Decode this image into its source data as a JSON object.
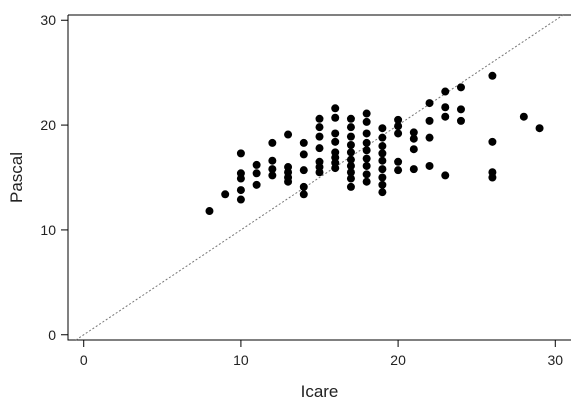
{
  "chart_data": {
    "type": "scatter",
    "xlabel": "Icare",
    "ylabel": "Pascal",
    "xlim": [
      -1,
      31
    ],
    "ylim": [
      -0.5,
      30.5
    ],
    "xticks": [
      0,
      10,
      20,
      30
    ],
    "yticks": [
      0,
      10,
      20,
      30
    ],
    "reference_line": {
      "type": "identity",
      "style": "dashed",
      "color": "#777777"
    },
    "point_color": "#000000",
    "grid": false,
    "series": [
      {
        "points": [
          [
            8,
            11.8
          ],
          [
            9,
            13.4
          ],
          [
            10,
            17.3
          ],
          [
            10,
            15.4
          ],
          [
            10,
            14.9
          ],
          [
            10,
            13.8
          ],
          [
            10,
            12.9
          ],
          [
            11,
            16.2
          ],
          [
            11,
            15.4
          ],
          [
            11,
            14.3
          ],
          [
            12,
            18.3
          ],
          [
            12,
            16.6
          ],
          [
            12,
            15.8
          ],
          [
            12,
            15.2
          ],
          [
            13,
            19.1
          ],
          [
            13,
            16.0
          ],
          [
            13,
            15.5
          ],
          [
            13,
            15.0
          ],
          [
            13,
            14.6
          ],
          [
            14,
            18.3
          ],
          [
            14,
            17.2
          ],
          [
            14,
            15.7
          ],
          [
            14,
            14.1
          ],
          [
            14,
            13.4
          ],
          [
            15,
            20.6
          ],
          [
            15,
            19.8
          ],
          [
            15,
            18.9
          ],
          [
            15,
            17.8
          ],
          [
            15,
            16.5
          ],
          [
            15,
            16.0
          ],
          [
            15,
            15.5
          ],
          [
            16,
            21.6
          ],
          [
            16,
            20.7
          ],
          [
            16,
            19.2
          ],
          [
            16,
            18.4
          ],
          [
            16,
            17.4
          ],
          [
            16,
            16.9
          ],
          [
            16,
            16.4
          ],
          [
            16,
            15.9
          ],
          [
            17,
            20.6
          ],
          [
            17,
            19.8
          ],
          [
            17,
            18.9
          ],
          [
            17,
            18.1
          ],
          [
            17,
            17.4
          ],
          [
            17,
            16.7
          ],
          [
            17,
            16.1
          ],
          [
            17,
            15.5
          ],
          [
            17,
            14.9
          ],
          [
            17,
            14.1
          ],
          [
            18,
            21.1
          ],
          [
            18,
            20.3
          ],
          [
            18,
            19.2
          ],
          [
            18,
            18.3
          ],
          [
            18,
            17.6
          ],
          [
            18,
            16.8
          ],
          [
            18,
            16.1
          ],
          [
            18,
            15.3
          ],
          [
            18,
            14.6
          ],
          [
            19,
            19.7
          ],
          [
            19,
            18.8
          ],
          [
            19,
            18.0
          ],
          [
            19,
            17.3
          ],
          [
            19,
            16.6
          ],
          [
            19,
            15.8
          ],
          [
            19,
            15.0
          ],
          [
            19,
            14.3
          ],
          [
            19,
            13.6
          ],
          [
            20,
            20.5
          ],
          [
            20,
            19.9
          ],
          [
            20,
            19.2
          ],
          [
            20,
            16.5
          ],
          [
            20,
            15.7
          ],
          [
            21,
            19.3
          ],
          [
            21,
            18.7
          ],
          [
            21,
            17.7
          ],
          [
            21,
            15.8
          ],
          [
            22,
            22.1
          ],
          [
            22,
            20.4
          ],
          [
            22,
            18.8
          ],
          [
            22,
            16.1
          ],
          [
            23,
            23.2
          ],
          [
            23,
            21.7
          ],
          [
            23,
            20.8
          ],
          [
            23,
            15.2
          ],
          [
            24,
            23.6
          ],
          [
            24,
            21.5
          ],
          [
            24,
            20.4
          ],
          [
            26,
            24.7
          ],
          [
            26,
            18.4
          ],
          [
            26,
            15.5
          ],
          [
            26,
            15.0
          ],
          [
            28,
            20.8
          ],
          [
            29,
            19.7
          ]
        ]
      }
    ]
  }
}
